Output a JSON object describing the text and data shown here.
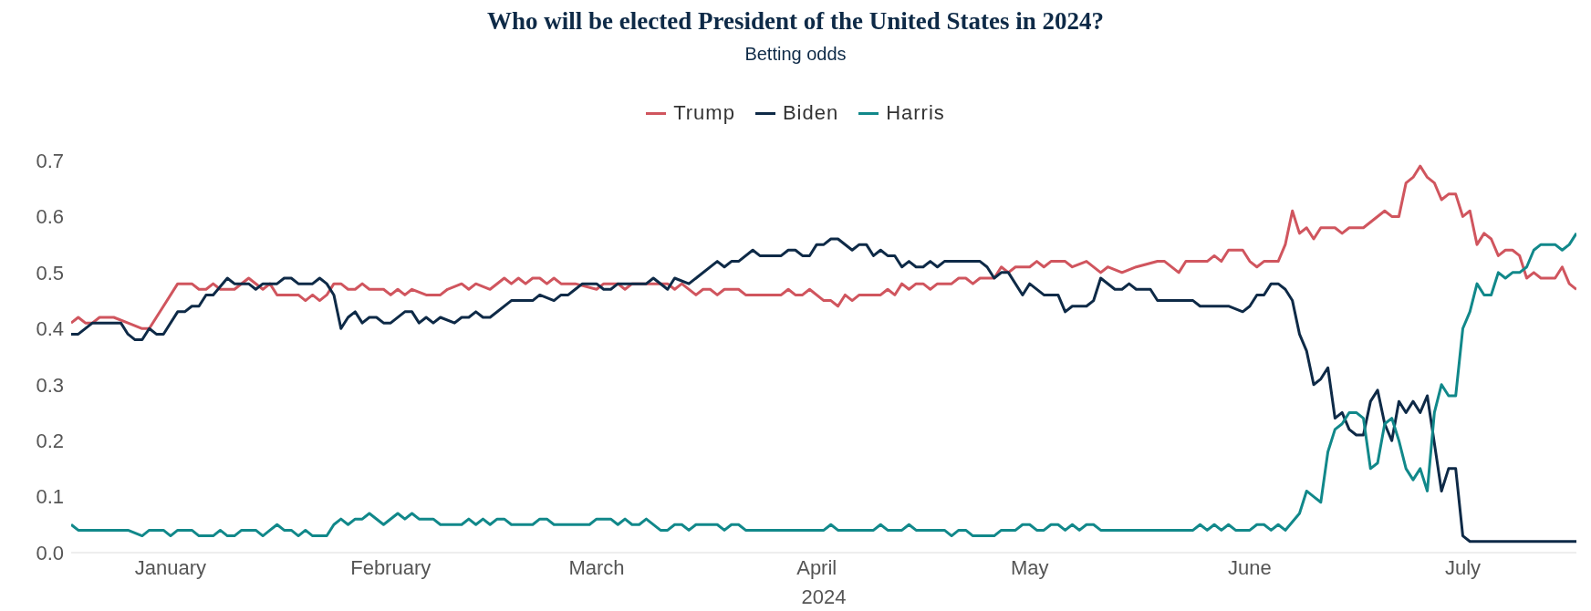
{
  "chart_data": {
    "type": "line",
    "title": "Who will be elected President of the United States in 2024?",
    "subtitle": "Betting odds",
    "xlabel": "2024",
    "xlim": [
      "2024-01-01",
      "2024-07-31"
    ],
    "xticks": [
      {
        "value": "2024-01-15",
        "label": "January"
      },
      {
        "value": "2024-02-15",
        "label": "February"
      },
      {
        "value": "2024-03-15",
        "label": "March"
      },
      {
        "value": "2024-04-15",
        "label": "April"
      },
      {
        "value": "2024-05-15",
        "label": "May"
      },
      {
        "value": "2024-06-15",
        "label": "June"
      },
      {
        "value": "2024-07-15",
        "label": "July"
      }
    ],
    "ylim": [
      0,
      0.7
    ],
    "yticks": [
      {
        "value": 0,
        "label": "0.0"
      },
      0.1,
      0.2,
      0.3,
      0.4,
      0.5,
      0.6,
      0.7
    ],
    "legend": "top",
    "marker": "none",
    "line_style": "solid",
    "series": [
      {
        "name": "Trump",
        "color": "#d0555e",
        "x": [
          "2024-01-01",
          "2024-01-02",
          "2024-01-03",
          "2024-01-04",
          "2024-01-05",
          "2024-01-07",
          "2024-01-09",
          "2024-01-11",
          "2024-01-12",
          "2024-01-13",
          "2024-01-14",
          "2024-01-16",
          "2024-01-18",
          "2024-01-19",
          "2024-01-20",
          "2024-01-21",
          "2024-01-22",
          "2024-01-24",
          "2024-01-26",
          "2024-01-28",
          "2024-01-29",
          "2024-01-30",
          "2024-02-02",
          "2024-02-03",
          "2024-02-04",
          "2024-02-05",
          "2024-02-06",
          "2024-02-07",
          "2024-02-08",
          "2024-02-09",
          "2024-02-10",
          "2024-02-11",
          "2024-02-12",
          "2024-02-14",
          "2024-02-15",
          "2024-02-16",
          "2024-02-17",
          "2024-02-18",
          "2024-02-20",
          "2024-02-22",
          "2024-02-23",
          "2024-02-25",
          "2024-02-26",
          "2024-02-27",
          "2024-02-29",
          "2024-03-02",
          "2024-03-03",
          "2024-03-04",
          "2024-03-05",
          "2024-03-06",
          "2024-03-07",
          "2024-03-08",
          "2024-03-09",
          "2024-03-10",
          "2024-03-11",
          "2024-03-12",
          "2024-03-15",
          "2024-03-16",
          "2024-03-18",
          "2024-03-19",
          "2024-03-20",
          "2024-03-25",
          "2024-03-26",
          "2024-03-27",
          "2024-03-29",
          "2024-03-30",
          "2024-03-31",
          "2024-04-01",
          "2024-04-02",
          "2024-04-04",
          "2024-04-05",
          "2024-04-10",
          "2024-04-11",
          "2024-04-12",
          "2024-04-13",
          "2024-04-14",
          "2024-04-16",
          "2024-04-17",
          "2024-04-18",
          "2024-04-19",
          "2024-04-20",
          "2024-04-21",
          "2024-04-24",
          "2024-04-25",
          "2024-04-26",
          "2024-04-27",
          "2024-04-28",
          "2024-04-29",
          "2024-04-30",
          "2024-05-01",
          "2024-05-02",
          "2024-05-04",
          "2024-05-05",
          "2024-05-06",
          "2024-05-07",
          "2024-05-08",
          "2024-05-10",
          "2024-05-11",
          "2024-05-12",
          "2024-05-13",
          "2024-05-15",
          "2024-05-16",
          "2024-05-17",
          "2024-05-18",
          "2024-05-19",
          "2024-05-20",
          "2024-05-21",
          "2024-05-23",
          "2024-05-25",
          "2024-05-26",
          "2024-05-28",
          "2024-05-30",
          "2024-06-02",
          "2024-06-03",
          "2024-06-05",
          "2024-06-06",
          "2024-06-09",
          "2024-06-10",
          "2024-06-11",
          "2024-06-12",
          "2024-06-14",
          "2024-06-15",
          "2024-06-16",
          "2024-06-17",
          "2024-06-19",
          "2024-06-20",
          "2024-06-21",
          "2024-06-22",
          "2024-06-23",
          "2024-06-24",
          "2024-06-25",
          "2024-06-27",
          "2024-06-28",
          "2024-06-29",
          "2024-07-01",
          "2024-07-04",
          "2024-07-05",
          "2024-07-06",
          "2024-07-07",
          "2024-07-08",
          "2024-07-09",
          "2024-07-10",
          "2024-07-11",
          "2024-07-12",
          "2024-07-13",
          "2024-07-14",
          "2024-07-15",
          "2024-07-16",
          "2024-07-17",
          "2024-07-18",
          "2024-07-19",
          "2024-07-20",
          "2024-07-21",
          "2024-07-22",
          "2024-07-23",
          "2024-07-24",
          "2024-07-25",
          "2024-07-26",
          "2024-07-28",
          "2024-07-29",
          "2024-07-30",
          "2024-07-31"
        ],
        "values": [
          0.41,
          0.42,
          0.41,
          0.41,
          0.42,
          0.42,
          0.41,
          0.4,
          0.4,
          0.42,
          0.44,
          0.48,
          0.48,
          0.47,
          0.47,
          0.48,
          0.47,
          0.47,
          0.49,
          0.47,
          0.48,
          0.46,
          0.46,
          0.45,
          0.46,
          0.45,
          0.46,
          0.48,
          0.48,
          0.47,
          0.47,
          0.48,
          0.47,
          0.47,
          0.46,
          0.47,
          0.46,
          0.47,
          0.46,
          0.46,
          0.47,
          0.48,
          0.47,
          0.48,
          0.47,
          0.49,
          0.48,
          0.49,
          0.48,
          0.49,
          0.49,
          0.48,
          0.49,
          0.48,
          0.48,
          0.48,
          0.47,
          0.48,
          0.48,
          0.47,
          0.48,
          0.48,
          0.47,
          0.48,
          0.46,
          0.47,
          0.47,
          0.46,
          0.47,
          0.47,
          0.46,
          0.46,
          0.47,
          0.46,
          0.46,
          0.47,
          0.45,
          0.45,
          0.44,
          0.46,
          0.45,
          0.46,
          0.46,
          0.47,
          0.46,
          0.48,
          0.47,
          0.48,
          0.48,
          0.47,
          0.48,
          0.48,
          0.49,
          0.49,
          0.48,
          0.49,
          0.49,
          0.51,
          0.5,
          0.51,
          0.51,
          0.52,
          0.51,
          0.52,
          0.52,
          0.52,
          0.51,
          0.52,
          0.5,
          0.51,
          0.5,
          0.51,
          0.52,
          0.52,
          0.5,
          0.52,
          0.52,
          0.53,
          0.52,
          0.54,
          0.54,
          0.52,
          0.51,
          0.52,
          0.52,
          0.55,
          0.61,
          0.57,
          0.58,
          0.56,
          0.58,
          0.58,
          0.57,
          0.58,
          0.58,
          0.61,
          0.6,
          0.6,
          0.66,
          0.67,
          0.69,
          0.67,
          0.66,
          0.63,
          0.64,
          0.64,
          0.6,
          0.61,
          0.55,
          0.57,
          0.56,
          0.53,
          0.54,
          0.54,
          0.53,
          0.49,
          0.5,
          0.49,
          0.49,
          0.51,
          0.48,
          0.47
        ]
      },
      {
        "name": "Biden",
        "color": "#0e2a47",
        "x": [
          "2024-01-01",
          "2024-01-02",
          "2024-01-04",
          "2024-01-08",
          "2024-01-09",
          "2024-01-10",
          "2024-01-11",
          "2024-01-12",
          "2024-01-13",
          "2024-01-14",
          "2024-01-16",
          "2024-01-17",
          "2024-01-18",
          "2024-01-19",
          "2024-01-20",
          "2024-01-21",
          "2024-01-23",
          "2024-01-24",
          "2024-01-26",
          "2024-01-27",
          "2024-01-28",
          "2024-01-30",
          "2024-01-31",
          "2024-02-01",
          "2024-02-02",
          "2024-02-04",
          "2024-02-05",
          "2024-02-06",
          "2024-02-07",
          "2024-02-08",
          "2024-02-09",
          "2024-02-10",
          "2024-02-11",
          "2024-02-12",
          "2024-02-13",
          "2024-02-14",
          "2024-02-15",
          "2024-02-17",
          "2024-02-18",
          "2024-02-19",
          "2024-02-20",
          "2024-02-21",
          "2024-02-22",
          "2024-02-24",
          "2024-02-25",
          "2024-02-26",
          "2024-02-27",
          "2024-02-28",
          "2024-02-29",
          "2024-03-03",
          "2024-03-06",
          "2024-03-07",
          "2024-03-09",
          "2024-03-10",
          "2024-03-11",
          "2024-03-12",
          "2024-03-13",
          "2024-03-15",
          "2024-03-16",
          "2024-03-17",
          "2024-03-18",
          "2024-03-22",
          "2024-03-23",
          "2024-03-25",
          "2024-03-26",
          "2024-03-28",
          "2024-04-01",
          "2024-04-02",
          "2024-04-03",
          "2024-04-04",
          "2024-04-06",
          "2024-04-07",
          "2024-04-10",
          "2024-04-11",
          "2024-04-12",
          "2024-04-13",
          "2024-04-14",
          "2024-04-15",
          "2024-04-16",
          "2024-04-17",
          "2024-04-18",
          "2024-04-20",
          "2024-04-21",
          "2024-04-22",
          "2024-04-23",
          "2024-04-24",
          "2024-04-25",
          "2024-04-26",
          "2024-04-27",
          "2024-04-28",
          "2024-04-29",
          "2024-04-30",
          "2024-05-01",
          "2024-05-02",
          "2024-05-03",
          "2024-05-08",
          "2024-05-09",
          "2024-05-10",
          "2024-05-11",
          "2024-05-12",
          "2024-05-14",
          "2024-05-15",
          "2024-05-17",
          "2024-05-19",
          "2024-05-20",
          "2024-05-21",
          "2024-05-23",
          "2024-05-24",
          "2024-05-25",
          "2024-05-27",
          "2024-05-28",
          "2024-05-29",
          "2024-05-30",
          "2024-06-01",
          "2024-06-02",
          "2024-06-07",
          "2024-06-08",
          "2024-06-12",
          "2024-06-14",
          "2024-06-15",
          "2024-06-16",
          "2024-06-17",
          "2024-06-18",
          "2024-06-19",
          "2024-06-20",
          "2024-06-21",
          "2024-06-22",
          "2024-06-23",
          "2024-06-24",
          "2024-06-25",
          "2024-06-26",
          "2024-06-27",
          "2024-06-28",
          "2024-06-29",
          "2024-06-30",
          "2024-07-01",
          "2024-07-02",
          "2024-07-03",
          "2024-07-04",
          "2024-07-05",
          "2024-07-06",
          "2024-07-07",
          "2024-07-08",
          "2024-07-09",
          "2024-07-10",
          "2024-07-12",
          "2024-07-13",
          "2024-07-14",
          "2024-07-15",
          "2024-07-16",
          "2024-07-31"
        ],
        "values": [
          0.39,
          0.39,
          0.41,
          0.41,
          0.39,
          0.38,
          0.38,
          0.4,
          0.39,
          0.39,
          0.43,
          0.43,
          0.44,
          0.44,
          0.46,
          0.46,
          0.49,
          0.48,
          0.48,
          0.47,
          0.48,
          0.48,
          0.49,
          0.49,
          0.48,
          0.48,
          0.49,
          0.48,
          0.46,
          0.4,
          0.42,
          0.43,
          0.41,
          0.42,
          0.42,
          0.41,
          0.41,
          0.43,
          0.43,
          0.41,
          0.42,
          0.41,
          0.42,
          0.41,
          0.42,
          0.42,
          0.43,
          0.42,
          0.42,
          0.45,
          0.45,
          0.46,
          0.45,
          0.46,
          0.46,
          0.47,
          0.48,
          0.48,
          0.47,
          0.47,
          0.48,
          0.48,
          0.49,
          0.47,
          0.49,
          0.48,
          0.52,
          0.51,
          0.52,
          0.52,
          0.54,
          0.53,
          0.53,
          0.54,
          0.54,
          0.53,
          0.53,
          0.55,
          0.55,
          0.56,
          0.56,
          0.54,
          0.55,
          0.55,
          0.53,
          0.54,
          0.53,
          0.53,
          0.51,
          0.52,
          0.51,
          0.51,
          0.52,
          0.51,
          0.52,
          0.52,
          0.51,
          0.49,
          0.5,
          0.5,
          0.46,
          0.48,
          0.46,
          0.46,
          0.43,
          0.44,
          0.44,
          0.45,
          0.49,
          0.47,
          0.47,
          0.48,
          0.47,
          0.47,
          0.45,
          0.45,
          0.44,
          0.44,
          0.43,
          0.44,
          0.46,
          0.46,
          0.48,
          0.48,
          0.47,
          0.45,
          0.39,
          0.36,
          0.3,
          0.31,
          0.33,
          0.24,
          0.25,
          0.22,
          0.21,
          0.21,
          0.27,
          0.29,
          0.23,
          0.2,
          0.27,
          0.25,
          0.27,
          0.25,
          0.28,
          0.11,
          0.15,
          0.15,
          0.03,
          0.02,
          0.02
        ]
      },
      {
        "name": "Harris",
        "color": "#11888a",
        "x": [
          "2024-01-01",
          "2024-01-02",
          "2024-01-09",
          "2024-01-11",
          "2024-01-12",
          "2024-01-14",
          "2024-01-15",
          "2024-01-16",
          "2024-01-18",
          "2024-01-19",
          "2024-01-21",
          "2024-01-22",
          "2024-01-23",
          "2024-01-24",
          "2024-01-25",
          "2024-01-27",
          "2024-01-28",
          "2024-01-29",
          "2024-01-30",
          "2024-01-31",
          "2024-02-01",
          "2024-02-02",
          "2024-02-03",
          "2024-02-04",
          "2024-02-06",
          "2024-02-07",
          "2024-02-08",
          "2024-02-09",
          "2024-02-10",
          "2024-02-11",
          "2024-02-12",
          "2024-02-14",
          "2024-02-16",
          "2024-02-17",
          "2024-02-18",
          "2024-02-19",
          "2024-02-21",
          "2024-02-22",
          "2024-02-25",
          "2024-02-26",
          "2024-02-27",
          "2024-02-28",
          "2024-02-29",
          "2024-03-01",
          "2024-03-02",
          "2024-03-03",
          "2024-03-06",
          "2024-03-07",
          "2024-03-08",
          "2024-03-09",
          "2024-03-14",
          "2024-03-15",
          "2024-03-17",
          "2024-03-18",
          "2024-03-19",
          "2024-03-20",
          "2024-03-21",
          "2024-03-22",
          "2024-03-24",
          "2024-03-25",
          "2024-03-26",
          "2024-03-27",
          "2024-03-28",
          "2024-03-29",
          "2024-04-01",
          "2024-04-02",
          "2024-04-03",
          "2024-04-04",
          "2024-04-05",
          "2024-04-16",
          "2024-04-17",
          "2024-04-18",
          "2024-04-23",
          "2024-04-24",
          "2024-04-25",
          "2024-04-27",
          "2024-04-28",
          "2024-04-29",
          "2024-05-03",
          "2024-05-04",
          "2024-05-05",
          "2024-05-06",
          "2024-05-07",
          "2024-05-10",
          "2024-05-11",
          "2024-05-13",
          "2024-05-14",
          "2024-05-15",
          "2024-05-16",
          "2024-05-17",
          "2024-05-18",
          "2024-05-19",
          "2024-05-20",
          "2024-05-21",
          "2024-05-22",
          "2024-05-23",
          "2024-05-24",
          "2024-05-25",
          "2024-06-07",
          "2024-06-08",
          "2024-06-09",
          "2024-06-10",
          "2024-06-11",
          "2024-06-12",
          "2024-06-13",
          "2024-06-15",
          "2024-06-16",
          "2024-06-17",
          "2024-06-18",
          "2024-06-19",
          "2024-06-20",
          "2024-06-22",
          "2024-06-23",
          "2024-06-24",
          "2024-06-25",
          "2024-06-26",
          "2024-06-27",
          "2024-06-28",
          "2024-06-29",
          "2024-06-30",
          "2024-07-01",
          "2024-07-02",
          "2024-07-03",
          "2024-07-04",
          "2024-07-05",
          "2024-07-06",
          "2024-07-07",
          "2024-07-08",
          "2024-07-09",
          "2024-07-10",
          "2024-07-11",
          "2024-07-12",
          "2024-07-13",
          "2024-07-14",
          "2024-07-15",
          "2024-07-16",
          "2024-07-17",
          "2024-07-18",
          "2024-07-19",
          "2024-07-20",
          "2024-07-21",
          "2024-07-22",
          "2024-07-23",
          "2024-07-24",
          "2024-07-25",
          "2024-07-26",
          "2024-07-28",
          "2024-07-29",
          "2024-07-30",
          "2024-07-31"
        ],
        "values": [
          0.05,
          0.04,
          0.04,
          0.03,
          0.04,
          0.04,
          0.03,
          0.04,
          0.04,
          0.03,
          0.03,
          0.04,
          0.03,
          0.03,
          0.04,
          0.04,
          0.03,
          0.04,
          0.05,
          0.04,
          0.04,
          0.03,
          0.04,
          0.03,
          0.03,
          0.05,
          0.06,
          0.05,
          0.06,
          0.06,
          0.07,
          0.05,
          0.07,
          0.06,
          0.07,
          0.06,
          0.06,
          0.05,
          0.05,
          0.06,
          0.05,
          0.06,
          0.05,
          0.06,
          0.06,
          0.05,
          0.05,
          0.06,
          0.06,
          0.05,
          0.05,
          0.06,
          0.06,
          0.05,
          0.06,
          0.05,
          0.05,
          0.06,
          0.04,
          0.04,
          0.05,
          0.05,
          0.04,
          0.05,
          0.05,
          0.04,
          0.05,
          0.05,
          0.04,
          0.04,
          0.05,
          0.04,
          0.04,
          0.05,
          0.04,
          0.04,
          0.05,
          0.04,
          0.04,
          0.03,
          0.04,
          0.04,
          0.03,
          0.03,
          0.04,
          0.04,
          0.05,
          0.05,
          0.04,
          0.04,
          0.05,
          0.05,
          0.04,
          0.05,
          0.04,
          0.05,
          0.05,
          0.04,
          0.04,
          0.05,
          0.04,
          0.05,
          0.04,
          0.05,
          0.04,
          0.04,
          0.05,
          0.05,
          0.04,
          0.05,
          0.04,
          0.07,
          0.11,
          0.1,
          0.09,
          0.18,
          0.22,
          0.23,
          0.25,
          0.25,
          0.24,
          0.15,
          0.16,
          0.23,
          0.24,
          0.2,
          0.15,
          0.13,
          0.15,
          0.11,
          0.25,
          0.3,
          0.28,
          0.28,
          0.4,
          0.43,
          0.48,
          0.46,
          0.46,
          0.5,
          0.49,
          0.5,
          0.5,
          0.51,
          0.54,
          0.55,
          0.55,
          0.54,
          0.55,
          0.57
        ]
      }
    ]
  }
}
